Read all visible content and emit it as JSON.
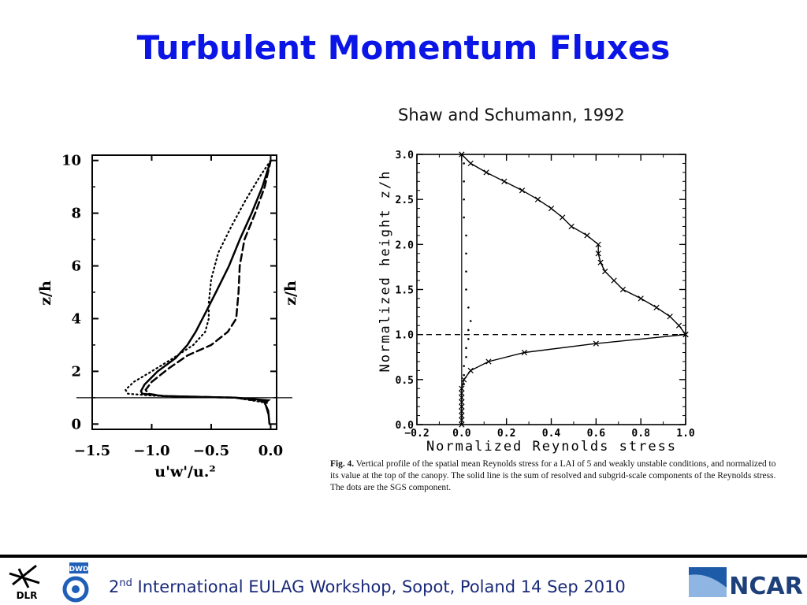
{
  "slide": {
    "title": "Turbulent Momentum Fluxes",
    "citation": "Shaw and Schumann, 1992",
    "footer": {
      "ordinal": "2",
      "ordinal_suffix": "nd",
      "text": " International EULAG Workshop, Sopot, Poland 14 Sep 2010"
    },
    "logos": {
      "left_1": "DLR",
      "left_2": "DWD",
      "right": "NCAR"
    },
    "caption": {
      "label": "Fig. 4.",
      "text": "Vertical profile of the spatial mean Reynolds stress for a LAI of 5 and weakly unstable conditions, and normalized to its value at the top of the canopy. The solid line is the sum of resolved and subgrid-scale components of the Reynolds stress. The dots are the SGS component."
    }
  },
  "chart_data": [
    {
      "type": "line",
      "xlabel": "u'w'/u.²",
      "ylabel": "z/h",
      "ylabel_right": "z/h",
      "xlim": [
        -1.5,
        0.05
      ],
      "ylim": [
        -0.2,
        10.2
      ],
      "xticks": [
        -1.5,
        -1.0,
        -0.5,
        0.0
      ],
      "xtick_labels": [
        "−1.5",
        "−1.0",
        "−0.5",
        "0.0"
      ],
      "yticks": [
        0,
        2,
        4,
        6,
        8,
        10
      ],
      "ytick_labels": [
        "0",
        "2",
        "4",
        "6",
        "8",
        "10"
      ],
      "hline": 1.0,
      "series": [
        {
          "style": "solid",
          "x": [
            -0.01,
            -0.02,
            -0.05,
            -0.02,
            -0.3,
            -0.6,
            -0.9,
            -1.08,
            -1.09,
            -1.06,
            -0.95,
            -0.8,
            -0.7,
            -0.63,
            -0.55,
            -0.46,
            -0.35,
            -0.26,
            -0.16,
            -0.07,
            0.0
          ],
          "y": [
            0.0,
            0.5,
            0.8,
            0.9,
            1.0,
            1.03,
            1.06,
            1.15,
            1.25,
            1.5,
            2.0,
            2.5,
            3.0,
            3.5,
            4.2,
            5.0,
            6.0,
            7.0,
            8.0,
            9.0,
            10.0
          ]
        },
        {
          "style": "dashed",
          "x": [
            -0.02,
            -0.05,
            -0.3,
            -0.6,
            -0.9,
            -1.03,
            -1.05,
            -1.0,
            -0.86,
            -0.7,
            -0.5,
            -0.36,
            -0.29,
            -0.27,
            -0.26,
            -0.22,
            -0.13,
            -0.05,
            0.0
          ],
          "y": [
            0.4,
            0.85,
            1.0,
            1.03,
            1.06,
            1.15,
            1.3,
            1.6,
            2.1,
            2.6,
            3.0,
            3.5,
            4.0,
            5.0,
            6.0,
            7.0,
            8.0,
            9.0,
            10.0
          ]
        },
        {
          "style": "dotted",
          "x": [
            -0.03,
            -0.3,
            -0.7,
            -1.0,
            -1.2,
            -1.22,
            -1.15,
            -1.0,
            -0.82,
            -0.65,
            -0.55,
            -0.52,
            -0.52,
            -0.5,
            -0.44,
            -0.33,
            -0.21,
            -0.09,
            0.0
          ],
          "y": [
            0.8,
            1.0,
            1.03,
            1.08,
            1.15,
            1.3,
            1.6,
            2.0,
            2.5,
            3.0,
            3.5,
            4.0,
            4.6,
            5.5,
            6.5,
            7.5,
            8.5,
            9.4,
            10.0
          ]
        }
      ]
    },
    {
      "type": "line",
      "xlabel": "Normalized Reynolds stress",
      "ylabel": "Normalized height z/h",
      "xlim": [
        -0.2,
        1.0
      ],
      "ylim": [
        0.0,
        3.0
      ],
      "xticks": [
        -0.2,
        0.0,
        0.2,
        0.4,
        0.6,
        0.8,
        1.0
      ],
      "xtick_labels": [
        "−0.2",
        "0.0",
        "0.2",
        "0.4",
        "0.6",
        "0.8",
        "1.0"
      ],
      "yticks": [
        0.0,
        0.5,
        1.0,
        1.5,
        2.0,
        2.5,
        3.0
      ],
      "ytick_labels": [
        "0.0",
        "0.5",
        "1.0",
        "1.5",
        "2.0",
        "2.5",
        "3.0"
      ],
      "hline": 1.0,
      "series": [
        {
          "style": "solid-x-below-canopy",
          "x": [
            0.0,
            0.0,
            0.0,
            0.0,
            0.0,
            0.0,
            0.0,
            0.0,
            0.0,
            0.01,
            0.04,
            0.12,
            0.28,
            0.6,
            1.0
          ],
          "y": [
            0.0,
            0.05,
            0.1,
            0.15,
            0.2,
            0.25,
            0.3,
            0.35,
            0.4,
            0.5,
            0.6,
            0.7,
            0.8,
            0.9,
            1.0
          ]
        },
        {
          "style": "solid-x-above-canopy",
          "x": [
            1.0,
            0.97,
            0.93,
            0.87,
            0.8,
            0.72,
            0.68,
            0.64,
            0.62,
            0.61,
            0.61,
            0.56,
            0.49,
            0.45,
            0.4,
            0.34,
            0.27,
            0.19,
            0.11,
            0.04,
            0.0
          ],
          "y": [
            1.0,
            1.1,
            1.2,
            1.3,
            1.4,
            1.5,
            1.6,
            1.7,
            1.8,
            1.9,
            2.0,
            2.1,
            2.2,
            2.3,
            2.4,
            2.5,
            2.6,
            2.7,
            2.8,
            2.9,
            3.0
          ]
        },
        {
          "style": "dots-sgs",
          "x": [
            0.0,
            0.0,
            0.0,
            0.01,
            0.01,
            0.01,
            0.02,
            0.02,
            0.03,
            0.03,
            0.04,
            0.03,
            0.02,
            0.02,
            0.02,
            0.02,
            0.01,
            0.01,
            0.01,
            0.01
          ],
          "y": [
            0.1,
            0.2,
            0.3,
            0.45,
            0.55,
            0.65,
            0.75,
            0.85,
            0.95,
            1.05,
            1.15,
            1.3,
            1.5,
            1.7,
            1.9,
            2.1,
            2.3,
            2.5,
            2.7,
            2.9
          ]
        }
      ]
    }
  ]
}
